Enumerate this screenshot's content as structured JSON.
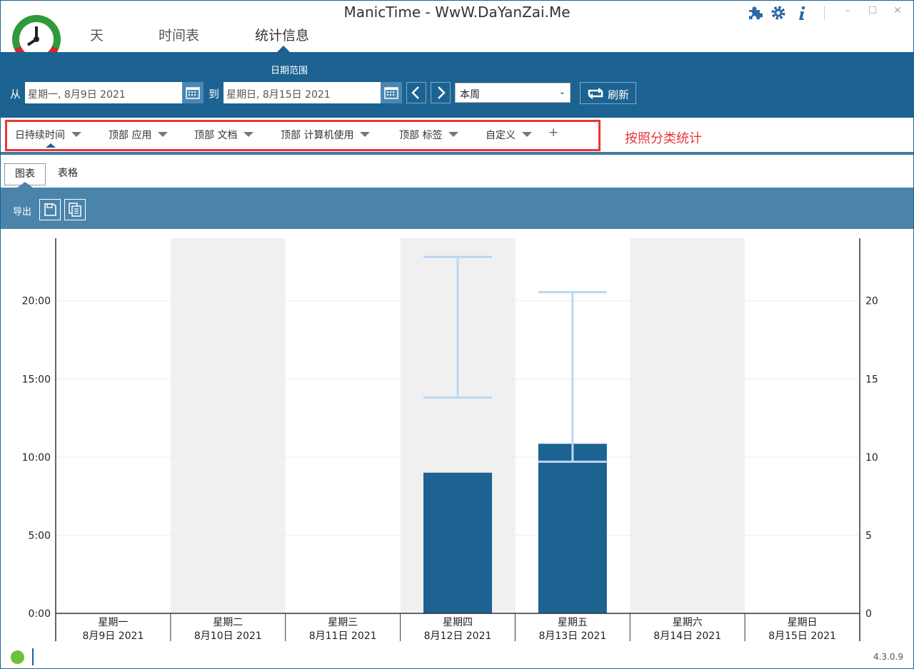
{
  "window": {
    "title": "ManicTime - WwW.DaYanZai.Me",
    "minimize_glyph": "–",
    "maximize_glyph": "☐",
    "close_glyph": "✕"
  },
  "main_tabs": {
    "day": "天",
    "timeline": "时间表",
    "stats": "统计信息"
  },
  "header_icons": [
    "puzzle-icon",
    "gear-icon",
    "info-icon"
  ],
  "date_range": {
    "section_label": "日期范围",
    "from_label": "从",
    "from_value": "星期一, 8月9日 2021",
    "to_label": "到",
    "to_value": "星期日, 8月15日 2021",
    "preset_value": "本周",
    "refresh_label": "刷新"
  },
  "category_tabs": [
    {
      "label": "日持续时间"
    },
    {
      "label": "顶部 应用"
    },
    {
      "label": "顶部 文档"
    },
    {
      "label": "顶部 计算机使用"
    },
    {
      "label": "顶部 标签"
    },
    {
      "label": "自定义"
    }
  ],
  "category_add": "+",
  "category_note": "按照分类统计",
  "view_tabs": {
    "chart": "图表",
    "table": "表格"
  },
  "toolbar": {
    "export_label": "导出"
  },
  "chart_data": {
    "type": "bar",
    "categories": [
      {
        "day": "星期一",
        "date": "8月9日 2021"
      },
      {
        "day": "星期二",
        "date": "8月10日 2021"
      },
      {
        "day": "星期三",
        "date": "8月11日 2021"
      },
      {
        "day": "星期四",
        "date": "8月12日 2021"
      },
      {
        "day": "星期五",
        "date": "8月13日 2021"
      },
      {
        "day": "星期六",
        "date": "8月14日 2021"
      },
      {
        "day": "星期日",
        "date": "8月15日 2021"
      }
    ],
    "values_hours": [
      0,
      0,
      0,
      9.0,
      10.85,
      0,
      0
    ],
    "ranges_hours": [
      null,
      null,
      null,
      [
        13.8,
        22.8
      ],
      [
        9.7,
        20.55
      ],
      null,
      null
    ],
    "shaded_columns": [
      1,
      3,
      5
    ],
    "ylim": [
      0,
      24
    ],
    "left_ticks": [
      "0:00",
      "5:00",
      "10:00",
      "15:00",
      "20:00"
    ],
    "right_ticks": [
      "0",
      "5",
      "10",
      "15",
      "20"
    ],
    "tick_values": [
      0,
      5,
      10,
      15,
      20
    ],
    "bar_color": "#1c6391",
    "range_color": "#bcd6f3",
    "shade_color": "#f0f0f0"
  },
  "status": {
    "version": "4.3.0.9"
  },
  "colors": {
    "accent": "#1c6391",
    "toolbar": "#4a84ab",
    "highlight": "#e8363a",
    "status_ok": "#6cc23a"
  }
}
